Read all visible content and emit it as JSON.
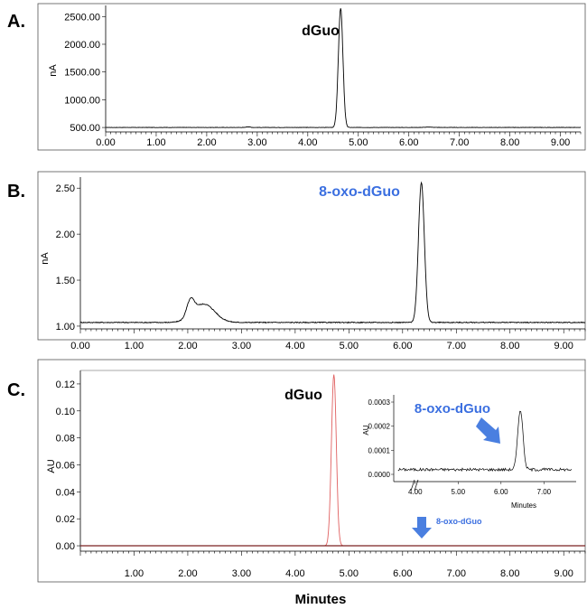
{
  "figure": {
    "xlabel": "Minutes"
  },
  "colors": {
    "blue_label": "#3b6fe0",
    "trace_black": "#000000",
    "trace_red": "#e06060",
    "arrow_blue": "#4a7fe0"
  },
  "chart_data": [
    {
      "panel": "A.",
      "type": "line",
      "ylabel": "nA",
      "xlim": [
        0,
        9.4
      ],
      "ylim": [
        420,
        2700
      ],
      "xticks": [
        "0.00",
        "1.00",
        "2.00",
        "3.00",
        "4.00",
        "5.00",
        "6.00",
        "7.00",
        "8.00",
        "9.00"
      ],
      "yticks": [
        "500.00",
        "1000.00",
        "1500.00",
        "2000.00",
        "2500.00"
      ],
      "annotation": {
        "text": "dGuo",
        "color": "black"
      },
      "series": [
        {
          "baseline": 500,
          "noise": 3,
          "peaks": [
            {
              "x": 4.65,
              "height": 2150,
              "width": 0.045
            },
            {
              "x": 2.82,
              "height": 12,
              "width": 0.04
            },
            {
              "x": 6.4,
              "height": 6,
              "width": 0.1
            }
          ]
        }
      ]
    },
    {
      "panel": "B.",
      "type": "line",
      "ylabel": "nA",
      "xlim": [
        0,
        9.4
      ],
      "ylim": [
        0.97,
        2.62
      ],
      "xticks": [
        "0.00",
        "1.00",
        "2.00",
        "3.00",
        "4.00",
        "5.00",
        "6.00",
        "7.00",
        "8.00",
        "9.00"
      ],
      "yticks": [
        "1.00",
        "1.50",
        "2.00",
        "2.50"
      ],
      "annotation": {
        "text": "8-oxo-dGuo",
        "color": "blue"
      },
      "series": [
        {
          "baseline": 1.04,
          "noise": 0.005,
          "peaks": [
            {
              "x": 2.05,
              "height": 0.17,
              "width": 0.07
            },
            {
              "x": 2.3,
              "height": 0.2,
              "width": 0.2
            },
            {
              "x": 6.35,
              "height": 1.52,
              "width": 0.055
            }
          ]
        }
      ]
    },
    {
      "panel": "C.",
      "type": "line",
      "ylabel": "AU",
      "xlim": [
        0,
        9.4
      ],
      "ylim": [
        -0.004,
        0.13
      ],
      "xticks": [
        "1.00",
        "2.00",
        "3.00",
        "4.00",
        "5.00",
        "6.00",
        "7.00",
        "8.00",
        "9.00"
      ],
      "yticks": [
        "0.00",
        "0.02",
        "0.04",
        "0.06",
        "0.08",
        "0.10",
        "0.12"
      ],
      "annotation": {
        "text": "dGuo",
        "color": "black"
      },
      "arrow_label": "8-oxo-dGuo",
      "series": [
        {
          "baseline": 0,
          "noise": 0,
          "peaks": [
            {
              "x": 4.72,
              "height": 0.127,
              "width": 0.045
            }
          ]
        }
      ],
      "inset": {
        "ylabel": "AU",
        "xlabel": "Minutes",
        "xlim": [
          3.5,
          7.75
        ],
        "ylim": [
          -3e-05,
          0.00033
        ],
        "xticks": [
          "4.00",
          "5.00",
          "6.00",
          "7.00"
        ],
        "yticks": [
          "0.0000",
          "0.0001",
          "0.0002",
          "0.0003"
        ],
        "annotation": {
          "text": "8-oxo-dGuo",
          "color": "blue"
        },
        "series": [
          {
            "baseline": 2e-05,
            "noise": 6e-06,
            "peaks": [
              {
                "x": 6.45,
                "height": 0.00025,
                "width": 0.06
              }
            ]
          }
        ]
      }
    }
  ]
}
